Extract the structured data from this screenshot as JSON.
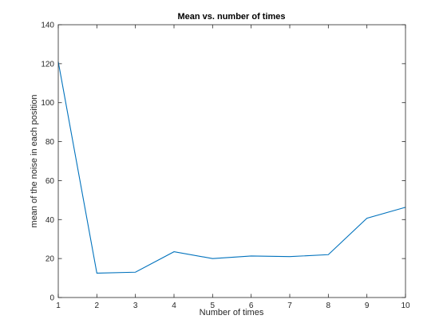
{
  "chart_data": {
    "type": "line",
    "title": "Mean vs. number of times",
    "xlabel": "Number of times",
    "ylabel": "mean of the noise in each position",
    "xlim": [
      1,
      10
    ],
    "ylim": [
      0,
      140
    ],
    "xticks": [
      1,
      2,
      3,
      4,
      5,
      6,
      7,
      8,
      9,
      10
    ],
    "yticks": [
      0,
      20,
      40,
      60,
      80,
      100,
      120,
      140
    ],
    "grid": false,
    "series": [
      {
        "color": "#0072bd",
        "x": [
          1,
          2,
          3,
          4,
          5,
          6,
          7,
          8,
          9,
          10
        ],
        "values": [
          121,
          12.5,
          13,
          23.5,
          20,
          21.3,
          21,
          22,
          40.7,
          46.3
        ]
      }
    ]
  }
}
